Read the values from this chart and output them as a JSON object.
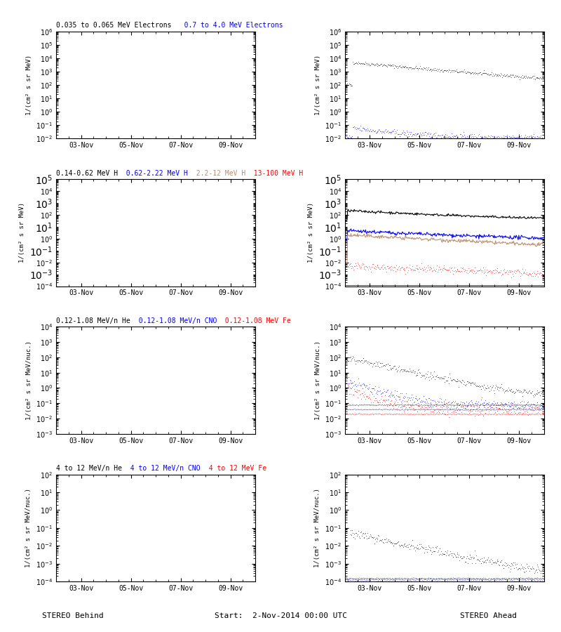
{
  "title_left": "STEREO Behind",
  "title_right": "STEREO Ahead",
  "start_label": "Start:  2-Nov-2014 00:00 UTC",
  "xtick_labels": [
    "03-Nov",
    "05-Nov",
    "07-Nov",
    "09-Nov"
  ],
  "panels": [
    {
      "col": 0,
      "row": 0,
      "ylabel": "1/(cm² s sr MeV)",
      "ylim": [
        0.01,
        1000000.0
      ],
      "has_data": false
    },
    {
      "col": 1,
      "row": 0,
      "ylabel": "1/(cm² s sr MeV)",
      "ylim": [
        0.01,
        1000000.0
      ],
      "has_data": true
    },
    {
      "col": 0,
      "row": 1,
      "ylabel": "1/(cm² s sr MeV)",
      "ylim": [
        0.0001,
        100000.0
      ],
      "has_data": false
    },
    {
      "col": 1,
      "row": 1,
      "ylabel": "1/(cm² s sr MeV)",
      "ylim": [
        0.0001,
        100000.0
      ],
      "has_data": true
    },
    {
      "col": 0,
      "row": 2,
      "ylabel": "1/(cm² s sr MeV/nuc.)",
      "ylim": [
        0.001,
        10000.0
      ],
      "has_data": false
    },
    {
      "col": 1,
      "row": 2,
      "ylabel": "1/(cm² s sr MeV/nuc.)",
      "ylim": [
        0.001,
        10000.0
      ],
      "has_data": true
    },
    {
      "col": 0,
      "row": 3,
      "ylabel": "1/(cm² s sr MeV/nuc.)",
      "ylim": [
        0.0001,
        100.0
      ],
      "has_data": false
    },
    {
      "col": 1,
      "row": 3,
      "ylabel": "1/(cm² s sr MeV/nuc.)",
      "ylim": [
        0.0001,
        100.0
      ],
      "has_data": true
    }
  ],
  "row_titles": [
    [
      {
        "text": "0.035 to 0.065 MeV Electrons",
        "color": "#000000"
      },
      {
        "text": "   0.7 to 4.0 MeV Electrons",
        "color": "#0000FF"
      }
    ],
    [
      {
        "text": "0.14-0.62 MeV H",
        "color": "#000000"
      },
      {
        "text": "  0.62-2.22 MeV H",
        "color": "#0000FF"
      },
      {
        "text": "  2.2-12 MeV H",
        "color": "#BC8F6F"
      },
      {
        "text": "  13-100 MeV H",
        "color": "#FF0000"
      }
    ],
    [
      {
        "text": "0.12-1.08 MeV/n He",
        "color": "#000000"
      },
      {
        "text": "  0.12-1.08 MeV/n CNO",
        "color": "#0000FF"
      },
      {
        "text": "  0.12-1.08 MeV Fe",
        "color": "#FF0000"
      }
    ],
    [
      {
        "text": "4 to 12 MeV/n He",
        "color": "#000000"
      },
      {
        "text": "  4 to 12 MeV/n CNO",
        "color": "#0000FF"
      },
      {
        "text": "  4 to 12 MeV Fe",
        "color": "#FF0000"
      }
    ]
  ]
}
